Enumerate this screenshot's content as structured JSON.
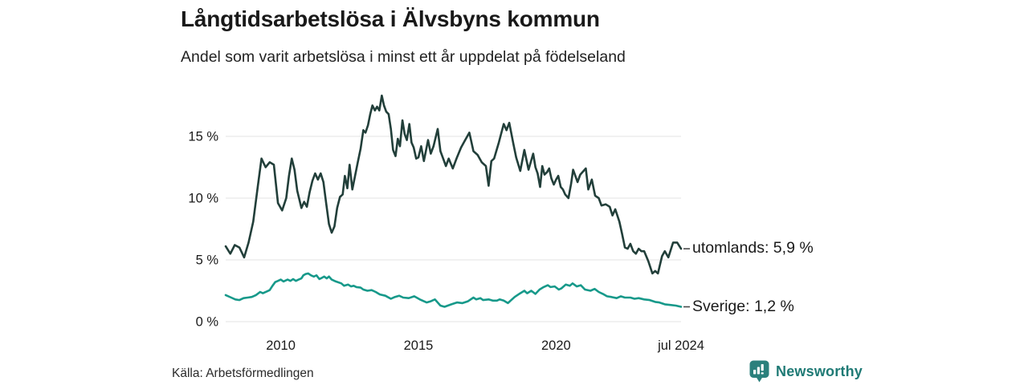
{
  "header": {
    "title": "Långtidsarbetslösa i Älvsbyns kommun",
    "subtitle": "Andel som varit arbetslösa i minst ett år uppdelat på födelseland"
  },
  "footer": {
    "source": "Källa: Arbetsförmedlingen",
    "brand": "Newsworthy"
  },
  "colors": {
    "utomlands_line": "#223f3a",
    "sverige_line": "#17998a",
    "grid": "#e3e3e3",
    "text": "#1a1a1a",
    "end_tick": "#4a4a4a",
    "brand_teal": "#2b807c"
  },
  "chart_data": {
    "type": "line",
    "title": "Långtidsarbetslösa i Älvsbyns kommun",
    "subtitle": "Andel som varit arbetslösa i minst ett år uppdelat på födelseland",
    "xlabel": "",
    "ylabel": "",
    "y_unit": "%",
    "grid": "horizontal",
    "legend_position": "line-end-labels",
    "x_domain": [
      2008.0,
      2024.54
    ],
    "y_domain": [
      0,
      18.5
    ],
    "x_ticks": [
      {
        "value": 2010,
        "label": "2010"
      },
      {
        "value": 2015,
        "label": "2015"
      },
      {
        "value": 2020,
        "label": "2020"
      },
      {
        "value": 2024.54,
        "label": "jul 2024"
      }
    ],
    "y_ticks": [
      {
        "value": 15,
        "label": "15 %"
      },
      {
        "value": 10,
        "label": "10 %"
      },
      {
        "value": 5,
        "label": "5 %"
      },
      {
        "value": 0,
        "label": "0 %"
      }
    ],
    "series": [
      {
        "name": "utomlands",
        "end_label": "utomlands: 5,9 %",
        "last_value": "5,9 %",
        "color": "#223f3a",
        "points": [
          [
            2008.0,
            6.1
          ],
          [
            2008.17,
            5.5
          ],
          [
            2008.33,
            6.2
          ],
          [
            2008.5,
            6.0
          ],
          [
            2008.67,
            5.2
          ],
          [
            2008.83,
            6.4
          ],
          [
            2009.0,
            8.1
          ],
          [
            2009.17,
            11.0
          ],
          [
            2009.3,
            13.2
          ],
          [
            2009.45,
            12.5
          ],
          [
            2009.6,
            12.9
          ],
          [
            2009.75,
            12.7
          ],
          [
            2009.9,
            9.6
          ],
          [
            2010.05,
            9.0
          ],
          [
            2010.2,
            10.0
          ],
          [
            2010.3,
            11.8
          ],
          [
            2010.4,
            13.2
          ],
          [
            2010.5,
            12.3
          ],
          [
            2010.6,
            10.6
          ],
          [
            2010.75,
            9.2
          ],
          [
            2010.85,
            9.7
          ],
          [
            2010.95,
            9.3
          ],
          [
            2011.05,
            10.5
          ],
          [
            2011.15,
            11.4
          ],
          [
            2011.25,
            12.0
          ],
          [
            2011.35,
            11.5
          ],
          [
            2011.45,
            12.0
          ],
          [
            2011.55,
            11.3
          ],
          [
            2011.65,
            9.6
          ],
          [
            2011.75,
            7.9
          ],
          [
            2011.85,
            7.2
          ],
          [
            2011.95,
            7.7
          ],
          [
            2012.05,
            9.2
          ],
          [
            2012.15,
            10.1
          ],
          [
            2012.25,
            10.3
          ],
          [
            2012.33,
            11.8
          ],
          [
            2012.42,
            10.8
          ],
          [
            2012.5,
            12.7
          ],
          [
            2012.6,
            10.7
          ],
          [
            2012.7,
            11.8
          ],
          [
            2012.8,
            12.9
          ],
          [
            2012.9,
            14.0
          ],
          [
            2013.0,
            15.5
          ],
          [
            2013.08,
            15.3
          ],
          [
            2013.17,
            15.9
          ],
          [
            2013.25,
            16.8
          ],
          [
            2013.33,
            17.5
          ],
          [
            2013.42,
            17.1
          ],
          [
            2013.5,
            17.4
          ],
          [
            2013.58,
            17.1
          ],
          [
            2013.67,
            18.3
          ],
          [
            2013.75,
            17.5
          ],
          [
            2013.83,
            17.0
          ],
          [
            2013.92,
            16.8
          ],
          [
            2014.0,
            15.6
          ],
          [
            2014.08,
            13.9
          ],
          [
            2014.17,
            13.4
          ],
          [
            2014.25,
            14.8
          ],
          [
            2014.33,
            14.2
          ],
          [
            2014.42,
            16.3
          ],
          [
            2014.5,
            15.2
          ],
          [
            2014.58,
            14.7
          ],
          [
            2014.67,
            16.0
          ],
          [
            2014.75,
            14.5
          ],
          [
            2014.83,
            14.1
          ],
          [
            2014.92,
            13.2
          ],
          [
            2015.0,
            13.3
          ],
          [
            2015.1,
            14.2
          ],
          [
            2015.2,
            13.0
          ],
          [
            2015.35,
            14.7
          ],
          [
            2015.45,
            13.6
          ],
          [
            2015.55,
            14.2
          ],
          [
            2015.7,
            15.6
          ],
          [
            2015.8,
            13.8
          ],
          [
            2015.9,
            13.2
          ],
          [
            2016.0,
            12.6
          ],
          [
            2016.1,
            13.2
          ],
          [
            2016.25,
            12.4
          ],
          [
            2016.4,
            13.3
          ],
          [
            2016.55,
            14.1
          ],
          [
            2016.7,
            14.7
          ],
          [
            2016.85,
            15.3
          ],
          [
            2017.0,
            13.8
          ],
          [
            2017.15,
            13.5
          ],
          [
            2017.3,
            12.9
          ],
          [
            2017.45,
            12.6
          ],
          [
            2017.55,
            11.0
          ],
          [
            2017.65,
            13.0
          ],
          [
            2017.75,
            13.2
          ],
          [
            2017.92,
            14.5
          ],
          [
            2018.1,
            16.0
          ],
          [
            2018.2,
            15.5
          ],
          [
            2018.3,
            16.1
          ],
          [
            2018.45,
            14.4
          ],
          [
            2018.55,
            13.3
          ],
          [
            2018.7,
            12.2
          ],
          [
            2018.85,
            13.9
          ],
          [
            2019.0,
            12.3
          ],
          [
            2019.08,
            12.9
          ],
          [
            2019.17,
            13.6
          ],
          [
            2019.25,
            12.5
          ],
          [
            2019.33,
            12.0
          ],
          [
            2019.42,
            10.9
          ],
          [
            2019.5,
            12.6
          ],
          [
            2019.58,
            11.9
          ],
          [
            2019.67,
            12.1
          ],
          [
            2019.75,
            12.4
          ],
          [
            2019.83,
            11.6
          ],
          [
            2019.92,
            11.1
          ],
          [
            2020.0,
            11.5
          ],
          [
            2020.08,
            11.8
          ],
          [
            2020.17,
            10.9
          ],
          [
            2020.25,
            10.7
          ],
          [
            2020.33,
            10.3
          ],
          [
            2020.45,
            10.0
          ],
          [
            2020.55,
            11.2
          ],
          [
            2020.62,
            12.3
          ],
          [
            2020.7,
            11.8
          ],
          [
            2020.78,
            11.3
          ],
          [
            2020.88,
            11.9
          ],
          [
            2021.0,
            12.2
          ],
          [
            2021.08,
            12.4
          ],
          [
            2021.17,
            10.7
          ],
          [
            2021.3,
            11.5
          ],
          [
            2021.42,
            10.2
          ],
          [
            2021.55,
            10.0
          ],
          [
            2021.65,
            9.4
          ],
          [
            2021.8,
            9.5
          ],
          [
            2021.95,
            9.3
          ],
          [
            2022.05,
            8.6
          ],
          [
            2022.15,
            9.1
          ],
          [
            2022.3,
            8.1
          ],
          [
            2022.4,
            7.1
          ],
          [
            2022.5,
            6.0
          ],
          [
            2022.6,
            5.9
          ],
          [
            2022.7,
            6.3
          ],
          [
            2022.8,
            5.7
          ],
          [
            2022.9,
            5.5
          ],
          [
            2023.0,
            5.9
          ],
          [
            2023.1,
            5.7
          ],
          [
            2023.2,
            5.7
          ],
          [
            2023.35,
            4.9
          ],
          [
            2023.5,
            3.9
          ],
          [
            2023.6,
            4.1
          ],
          [
            2023.7,
            3.9
          ],
          [
            2023.85,
            5.3
          ],
          [
            2023.95,
            5.7
          ],
          [
            2024.08,
            5.2
          ],
          [
            2024.25,
            6.4
          ],
          [
            2024.4,
            6.4
          ],
          [
            2024.54,
            5.9
          ]
        ]
      },
      {
        "name": "Sverige",
        "end_label": "Sverige: 1,2 %",
        "last_value": "1,2 %",
        "color": "#17998a",
        "points": [
          [
            2008.0,
            2.15
          ],
          [
            2008.2,
            1.95
          ],
          [
            2008.35,
            1.8
          ],
          [
            2008.5,
            1.75
          ],
          [
            2008.65,
            1.9
          ],
          [
            2008.8,
            1.95
          ],
          [
            2008.95,
            2.0
          ],
          [
            2009.1,
            2.15
          ],
          [
            2009.25,
            2.4
          ],
          [
            2009.35,
            2.3
          ],
          [
            2009.5,
            2.45
          ],
          [
            2009.6,
            2.55
          ],
          [
            2009.7,
            2.9
          ],
          [
            2009.8,
            3.2
          ],
          [
            2009.9,
            3.3
          ],
          [
            2010.0,
            3.4
          ],
          [
            2010.1,
            3.25
          ],
          [
            2010.25,
            3.4
          ],
          [
            2010.35,
            3.3
          ],
          [
            2010.45,
            3.45
          ],
          [
            2010.55,
            3.3
          ],
          [
            2010.65,
            3.4
          ],
          [
            2010.75,
            3.5
          ],
          [
            2010.82,
            3.75
          ],
          [
            2010.9,
            3.85
          ],
          [
            2011.0,
            3.9
          ],
          [
            2011.1,
            3.75
          ],
          [
            2011.2,
            3.65
          ],
          [
            2011.3,
            3.75
          ],
          [
            2011.4,
            3.45
          ],
          [
            2011.5,
            3.55
          ],
          [
            2011.58,
            3.65
          ],
          [
            2011.67,
            3.5
          ],
          [
            2011.75,
            3.65
          ],
          [
            2011.85,
            3.4
          ],
          [
            2012.0,
            3.25
          ],
          [
            2012.2,
            3.1
          ],
          [
            2012.3,
            2.9
          ],
          [
            2012.45,
            3.0
          ],
          [
            2012.55,
            2.85
          ],
          [
            2012.65,
            2.9
          ],
          [
            2012.75,
            2.8
          ],
          [
            2012.9,
            2.75
          ],
          [
            2013.0,
            2.6
          ],
          [
            2013.15,
            2.5
          ],
          [
            2013.3,
            2.55
          ],
          [
            2013.45,
            2.4
          ],
          [
            2013.6,
            2.2
          ],
          [
            2013.8,
            2.1
          ],
          [
            2014.0,
            1.85
          ],
          [
            2014.15,
            2.0
          ],
          [
            2014.3,
            2.1
          ],
          [
            2014.45,
            1.95
          ],
          [
            2014.65,
            1.9
          ],
          [
            2014.85,
            2.05
          ],
          [
            2015.05,
            1.8
          ],
          [
            2015.3,
            1.55
          ],
          [
            2015.45,
            1.65
          ],
          [
            2015.6,
            1.8
          ],
          [
            2015.8,
            1.3
          ],
          [
            2015.95,
            1.2
          ],
          [
            2016.2,
            1.4
          ],
          [
            2016.4,
            1.55
          ],
          [
            2016.6,
            1.5
          ],
          [
            2016.8,
            1.65
          ],
          [
            2017.0,
            1.95
          ],
          [
            2017.1,
            1.8
          ],
          [
            2017.25,
            1.9
          ],
          [
            2017.35,
            1.75
          ],
          [
            2017.55,
            1.8
          ],
          [
            2017.7,
            1.7
          ],
          [
            2017.85,
            1.7
          ],
          [
            2017.95,
            1.8
          ],
          [
            2018.1,
            1.7
          ],
          [
            2018.25,
            1.5
          ],
          [
            2018.5,
            2.0
          ],
          [
            2018.7,
            2.3
          ],
          [
            2018.85,
            2.5
          ],
          [
            2018.95,
            2.3
          ],
          [
            2019.1,
            2.5
          ],
          [
            2019.25,
            2.25
          ],
          [
            2019.4,
            2.6
          ],
          [
            2019.55,
            2.8
          ],
          [
            2019.7,
            2.95
          ],
          [
            2019.8,
            2.8
          ],
          [
            2019.95,
            2.85
          ],
          [
            2020.1,
            2.6
          ],
          [
            2020.2,
            2.7
          ],
          [
            2020.35,
            3.0
          ],
          [
            2020.5,
            2.9
          ],
          [
            2020.6,
            3.1
          ],
          [
            2020.75,
            2.85
          ],
          [
            2020.9,
            2.95
          ],
          [
            2021.05,
            2.6
          ],
          [
            2021.25,
            2.5
          ],
          [
            2021.4,
            2.65
          ],
          [
            2021.55,
            2.4
          ],
          [
            2021.7,
            2.25
          ],
          [
            2021.85,
            2.05
          ],
          [
            2022.0,
            2.0
          ],
          [
            2022.2,
            1.9
          ],
          [
            2022.35,
            2.05
          ],
          [
            2022.5,
            1.95
          ],
          [
            2022.7,
            1.95
          ],
          [
            2022.85,
            1.85
          ],
          [
            2023.0,
            1.9
          ],
          [
            2023.2,
            1.8
          ],
          [
            2023.4,
            1.75
          ],
          [
            2023.6,
            1.6
          ],
          [
            2023.75,
            1.55
          ],
          [
            2023.95,
            1.4
          ],
          [
            2024.15,
            1.35
          ],
          [
            2024.35,
            1.3
          ],
          [
            2024.54,
            1.2
          ]
        ]
      }
    ]
  }
}
